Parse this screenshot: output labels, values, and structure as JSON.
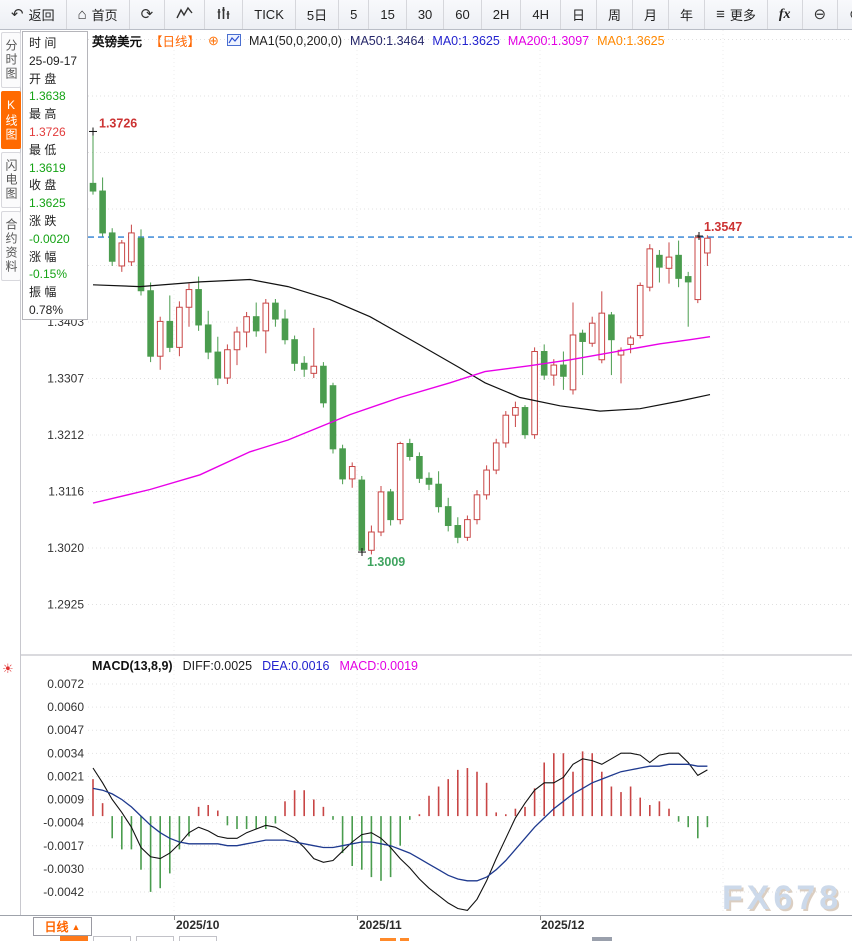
{
  "toolbar": {
    "items": [
      {
        "id": "back",
        "label": "返回",
        "icon": "back-arrow"
      },
      {
        "id": "home",
        "label": "首页",
        "icon": "home"
      },
      {
        "id": "refresh",
        "label": "",
        "icon": "refresh"
      },
      {
        "id": "line-chart-type",
        "label": "",
        "icon": "line-chart"
      },
      {
        "id": "volume-bars-type",
        "label": "",
        "icon": "volume-bars"
      },
      {
        "id": "tick",
        "label": "TICK",
        "icon": ""
      },
      {
        "id": "5day",
        "label": "5日",
        "icon": ""
      },
      {
        "id": "min5",
        "label": "5",
        "icon": ""
      },
      {
        "id": "min15",
        "label": "15",
        "icon": ""
      },
      {
        "id": "min30",
        "label": "30",
        "icon": ""
      },
      {
        "id": "min60",
        "label": "60",
        "icon": ""
      },
      {
        "id": "hour2",
        "label": "2H",
        "icon": ""
      },
      {
        "id": "hour4",
        "label": "4H",
        "icon": ""
      },
      {
        "id": "day",
        "label": "日",
        "icon": ""
      },
      {
        "id": "week",
        "label": "周",
        "icon": ""
      },
      {
        "id": "month",
        "label": "月",
        "icon": ""
      },
      {
        "id": "year",
        "label": "年",
        "icon": ""
      },
      {
        "id": "more",
        "label": "更多",
        "icon": "menu"
      },
      {
        "id": "fx",
        "label": "fx",
        "icon": ""
      },
      {
        "id": "zoom-out",
        "label": "",
        "icon": "zoom-out"
      },
      {
        "id": "zoom-in",
        "label": "",
        "icon": "zoom-in"
      }
    ]
  },
  "sidebar": {
    "tabs": [
      {
        "id": "time-chart",
        "label": "分时图",
        "active": false
      },
      {
        "id": "kline-chart",
        "label": "K线图",
        "active": true
      },
      {
        "id": "lightning-chart",
        "label": "闪电图",
        "active": false
      },
      {
        "id": "contract-info",
        "label": "合约资料",
        "active": false
      }
    ]
  },
  "info_panel": {
    "rows": [
      {
        "label": "时 间",
        "value": "25-09-17",
        "color": "#222222"
      },
      {
        "label": "开 盘",
        "value": "1.3638",
        "color": "#15a315"
      },
      {
        "label": "最 高",
        "value": "1.3726",
        "color": "#e23b3b"
      },
      {
        "label": "最 低",
        "value": "1.3619",
        "color": "#15a315"
      },
      {
        "label": "收 盘",
        "value": "1.3625",
        "color": "#15a315"
      },
      {
        "label": "涨 跌",
        "value": "-0.0020",
        "color": "#15a315"
      },
      {
        "label": "涨 幅",
        "value": "-0.15%",
        "color": "#15a315"
      },
      {
        "label": "振 幅",
        "value": "0.78%",
        "color": "#222222"
      }
    ]
  },
  "chart_header": {
    "symbol": "英镑美元",
    "period": "【日线】",
    "ma_settings": "MA1(50,0,200,0)",
    "ma50": "MA50:1.3464",
    "ma0_blue": "MA0:1.3625",
    "ma200": "MA200:1.3097",
    "ma0_orange": "MA0:1.3625"
  },
  "macd_header": {
    "title": "MACD(13,8,9)",
    "diff": "DIFF:0.0025",
    "dea": "DEA:0.0016",
    "macd": "MACD:0.0019"
  },
  "bottom_bar": {
    "tab_label": "日线",
    "tab_arrow": "▲"
  },
  "watermark": "FX678",
  "chart_data": {
    "type": "candlestick",
    "symbol": "英镑美元",
    "period": "日线",
    "price_axis": [
      "1.3403",
      "1.3307",
      "1.3212",
      "1.3116",
      "1.3020",
      "1.2925"
    ],
    "x_axis": [
      "2025/10",
      "2025/11",
      "2025/12"
    ],
    "last_price": 1.3547,
    "annotations": {
      "high": "1.3726",
      "low": "1.3009",
      "last": "1.3547"
    },
    "colors": {
      "up": "#c84545",
      "down": "#4a9c4e",
      "ma50": "#111111",
      "ma200": "#e800e8",
      "last_line": "#2b7fd4",
      "diff": "#111111",
      "dea": "#1f3a8f",
      "ann_high": "#cc3333",
      "ann_low": "#3fa35f",
      "ann_last": "#cc3333"
    },
    "ohlc": [
      [
        1.3638,
        1.3726,
        1.3619,
        1.3625
      ],
      [
        1.3625,
        1.3648,
        1.3548,
        1.3554
      ],
      [
        1.3554,
        1.3562,
        1.3498,
        1.3506
      ],
      [
        1.3498,
        1.3542,
        1.3488,
        1.3537
      ],
      [
        1.3505,
        1.3568,
        1.3498,
        1.3554
      ],
      [
        1.3545,
        1.356,
        1.3448,
        1.3456
      ],
      [
        1.3456,
        1.347,
        1.3335,
        1.3345
      ],
      [
        1.3345,
        1.3412,
        1.3322,
        1.3404
      ],
      [
        1.3404,
        1.3448,
        1.3352,
        1.336
      ],
      [
        1.336,
        1.3438,
        1.3345,
        1.3428
      ],
      [
        1.3428,
        1.3468,
        1.3395,
        1.3458
      ],
      [
        1.3458,
        1.348,
        1.3388,
        1.3398
      ],
      [
        1.3398,
        1.3422,
        1.334,
        1.3352
      ],
      [
        1.3352,
        1.3378,
        1.3296,
        1.3308
      ],
      [
        1.3308,
        1.3365,
        1.3298,
        1.3356
      ],
      [
        1.3356,
        1.3395,
        1.333,
        1.3386
      ],
      [
        1.3386,
        1.342,
        1.336,
        1.3412
      ],
      [
        1.3412,
        1.3436,
        1.3378,
        1.3388
      ],
      [
        1.3388,
        1.3442,
        1.335,
        1.3435
      ],
      [
        1.3435,
        1.3442,
        1.3395,
        1.3408
      ],
      [
        1.3408,
        1.3424,
        1.3365,
        1.3373
      ],
      [
        1.3373,
        1.338,
        1.332,
        1.3333
      ],
      [
        1.3333,
        1.3345,
        1.331,
        1.3323
      ],
      [
        1.3316,
        1.3393,
        1.3308,
        1.3328
      ],
      [
        1.3328,
        1.3335,
        1.3258,
        1.3266
      ],
      [
        1.3295,
        1.33,
        1.318,
        1.3188
      ],
      [
        1.3188,
        1.3195,
        1.3128,
        1.3137
      ],
      [
        1.3137,
        1.3165,
        1.3122,
        1.3158
      ],
      [
        1.3135,
        1.3142,
        1.3013,
        1.3016
      ],
      [
        1.3016,
        1.3058,
        1.3009,
        1.3047
      ],
      [
        1.3047,
        1.3125,
        1.304,
        1.3115
      ],
      [
        1.3115,
        1.312,
        1.3058,
        1.3068
      ],
      [
        1.3068,
        1.32,
        1.306,
        1.3197
      ],
      [
        1.3197,
        1.3205,
        1.3168,
        1.3175
      ],
      [
        1.3175,
        1.3182,
        1.313,
        1.3138
      ],
      [
        1.3138,
        1.3148,
        1.3118,
        1.3128
      ],
      [
        1.3128,
        1.315,
        1.308,
        1.309
      ],
      [
        1.309,
        1.3105,
        1.3048,
        1.3058
      ],
      [
        1.3058,
        1.3072,
        1.3028,
        1.3038
      ],
      [
        1.3038,
        1.3075,
        1.3032,
        1.3068
      ],
      [
        1.3068,
        1.3118,
        1.306,
        1.311
      ],
      [
        1.311,
        1.316,
        1.3102,
        1.3152
      ],
      [
        1.3152,
        1.3205,
        1.3145,
        1.3198
      ],
      [
        1.3198,
        1.3252,
        1.319,
        1.3245
      ],
      [
        1.3245,
        1.3268,
        1.3225,
        1.3258
      ],
      [
        1.3258,
        1.3262,
        1.3205,
        1.3212
      ],
      [
        1.3212,
        1.336,
        1.3205,
        1.3353
      ],
      [
        1.3353,
        1.3365,
        1.3305,
        1.3313
      ],
      [
        1.3313,
        1.334,
        1.3295,
        1.333
      ],
      [
        1.333,
        1.3353,
        1.3288,
        1.3311
      ],
      [
        1.3288,
        1.3436,
        1.328,
        1.3381
      ],
      [
        1.3384,
        1.339,
        1.3313,
        1.337
      ],
      [
        1.3367,
        1.3412,
        1.3361,
        1.3401
      ],
      [
        1.3339,
        1.3455,
        1.3333,
        1.3418
      ],
      [
        1.3415,
        1.342,
        1.3313,
        1.3373
      ],
      [
        1.3347,
        1.336,
        1.3299,
        1.3355
      ],
      [
        1.3365,
        1.338,
        1.335,
        1.3376
      ],
      [
        1.338,
        1.347,
        1.3375,
        1.3465
      ],
      [
        1.3462,
        1.3535,
        1.3455,
        1.3527
      ],
      [
        1.3516,
        1.3525,
        1.347,
        1.3496
      ],
      [
        1.3494,
        1.3538,
        1.3468,
        1.3513
      ],
      [
        1.3516,
        1.3541,
        1.3462,
        1.3477
      ],
      [
        1.348,
        1.3488,
        1.3395,
        1.3471
      ],
      [
        1.3441,
        1.3551,
        1.3435,
        1.3546
      ],
      [
        1.352,
        1.355,
        1.3498,
        1.3545
      ]
    ],
    "ma50": [
      [
        93,
        1.3466
      ],
      [
        140,
        1.3463
      ],
      [
        200,
        1.3471
      ],
      [
        250,
        1.3475
      ],
      [
        288,
        1.3463
      ],
      [
        330,
        1.3441
      ],
      [
        370,
        1.3412
      ],
      [
        420,
        1.3364
      ],
      [
        460,
        1.3325
      ],
      [
        485,
        1.33
      ],
      [
        520,
        1.3275
      ],
      [
        560,
        1.3261
      ],
      [
        600,
        1.3252
      ],
      [
        640,
        1.3256
      ],
      [
        680,
        1.3269
      ],
      [
        710,
        1.328
      ]
    ],
    "ma200": [
      [
        93,
        1.3096
      ],
      [
        150,
        1.3119
      ],
      [
        200,
        1.3144
      ],
      [
        250,
        1.3183
      ],
      [
        288,
        1.3203
      ],
      [
        350,
        1.3246
      ],
      [
        400,
        1.3275
      ],
      [
        450,
        1.33
      ],
      [
        485,
        1.3319
      ],
      [
        530,
        1.3329
      ],
      [
        570,
        1.3339
      ],
      [
        620,
        1.3354
      ],
      [
        660,
        1.3366
      ],
      [
        690,
        1.3373
      ],
      [
        710,
        1.3378
      ]
    ],
    "macd": {
      "params": "13,8,9",
      "axis": [
        "0.0072",
        "0.0060",
        "0.0047",
        "0.0034",
        "0.0021",
        "0.0009",
        "-0.0004",
        "-0.0017",
        "-0.0030",
        "-0.0042"
      ],
      "hist": [
        0.002,
        0.0007,
        -0.0012,
        -0.0018,
        -0.0018,
        -0.0029,
        -0.0041,
        -0.0039,
        -0.0031,
        -0.0018,
        -0.0011,
        0.0005,
        0.0006,
        0.0003,
        -0.0005,
        -0.0007,
        -0.0007,
        -0.0007,
        -0.0007,
        -0.0004,
        0.0008,
        0.0014,
        0.0014,
        0.0009,
        0.0005,
        -0.0002,
        -0.002,
        -0.0027,
        -0.0029,
        -0.0033,
        -0.0035,
        -0.0033,
        -0.0016,
        -0.0002,
        0.0001,
        0.0011,
        0.0016,
        0.002,
        0.0025,
        0.0026,
        0.0024,
        0.0018,
        0.0002,
        0.0001,
        0.0004,
        0.0005,
        0.0015,
        0.0029,
        0.0034,
        0.0034,
        0.0024,
        0.0035,
        0.0034,
        0.0024,
        0.0016,
        0.0013,
        0.0016,
        0.001,
        0.0006,
        0.0008,
        0.0004,
        -0.0003,
        -0.0006,
        -0.0012,
        -0.0006
      ],
      "diff": [
        0.0026,
        0.0018,
        0.0009,
        0.0002,
        -0.0006,
        -0.0017,
        -0.0022,
        -0.0023,
        -0.002,
        -0.0015,
        -0.0009,
        -0.0006,
        -0.0008,
        -0.0011,
        -0.0012,
        -0.0012,
        -0.0009,
        -0.0007,
        -0.0005,
        -0.0006,
        -0.0009,
        -0.0012,
        -0.0017,
        -0.0023,
        -0.0025,
        -0.0024,
        -0.0019,
        -0.0014,
        -0.001,
        -0.0009,
        -0.0012,
        -0.0017,
        -0.0023,
        -0.0028,
        -0.0034,
        -0.0039,
        -0.0043,
        -0.0047,
        -0.005,
        -0.0051,
        -0.0045,
        -0.0035,
        -0.0023,
        -0.0012,
        -0.0001,
        0.0007,
        0.0014,
        0.0018,
        0.0018,
        0.0021,
        0.0028,
        0.0031,
        0.003,
        0.0028,
        0.0031,
        0.0034,
        0.0034,
        0.0033,
        0.0029,
        0.0033,
        0.0034,
        0.0034,
        0.0029,
        0.0022,
        0.0025
      ],
      "dea": [
        0.0015,
        0.0014,
        0.0012,
        0.0009,
        0.0005,
        0.0,
        -0.0005,
        -0.0009,
        -0.0012,
        -0.0014,
        -0.0015,
        -0.0015,
        -0.0015,
        -0.0015,
        -0.0016,
        -0.0016,
        -0.0015,
        -0.0014,
        -0.0013,
        -0.0013,
        -0.0013,
        -0.0014,
        -0.0015,
        -0.0016,
        -0.0017,
        -0.0017,
        -0.0016,
        -0.0015,
        -0.0014,
        -0.0014,
        -0.0015,
        -0.0016,
        -0.0018,
        -0.002,
        -0.0023,
        -0.0026,
        -0.0029,
        -0.0032,
        -0.0034,
        -0.0035,
        -0.0035,
        -0.0033,
        -0.0029,
        -0.0024,
        -0.0018,
        -0.0012,
        -0.0006,
        -0.0001,
        0.0004,
        0.0008,
        0.0012,
        0.0015,
        0.0018,
        0.002,
        0.0022,
        0.0024,
        0.0025,
        0.0026,
        0.0027,
        0.0027,
        0.0028,
        0.0028,
        0.0028,
        0.0027,
        0.0027
      ]
    }
  }
}
